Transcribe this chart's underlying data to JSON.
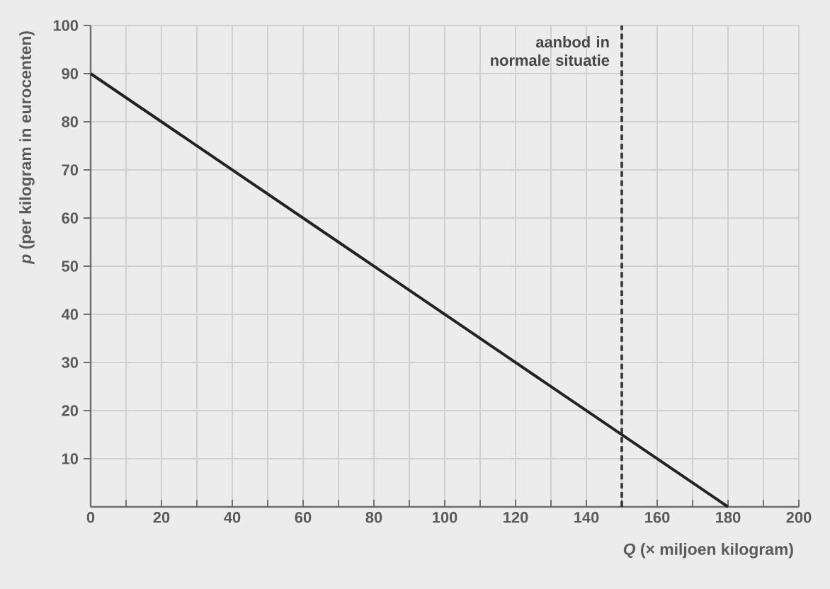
{
  "chart_data": {
    "type": "line",
    "xlabel": "*Q* (× miljoen kilogram)",
    "ylabel": "*p* (per kilogram in eurocenten)",
    "x": [
      0,
      180
    ],
    "series": [
      {
        "color": "#222222",
        "values": [
          90,
          0
        ]
      }
    ],
    "xlim": [
      0,
      200
    ],
    "ylim": [
      0,
      100
    ],
    "xticks": [
      0,
      {
        "value": 10,
        "label": null
      },
      20,
      {
        "value": 30,
        "label": null
      },
      40,
      {
        "value": 50,
        "label": null
      },
      60,
      {
        "value": 70,
        "label": null
      },
      80,
      {
        "value": 90,
        "label": null
      },
      100,
      {
        "value": 110,
        "label": null
      },
      120,
      {
        "value": 130,
        "label": null
      },
      140,
      {
        "value": 150,
        "label": null
      },
      160,
      {
        "value": 170,
        "label": null
      },
      180,
      {
        "value": 190,
        "label": null
      },
      200
    ],
    "yticks": [
      10,
      20,
      30,
      40,
      50,
      60,
      70,
      80,
      90,
      100
    ],
    "grid": true,
    "ref_lines": [
      {
        "axis": "x",
        "value": 150,
        "label": "aanbod in normale situatie",
        "color": "#333333",
        "line_style": "dashed"
      }
    ]
  }
}
